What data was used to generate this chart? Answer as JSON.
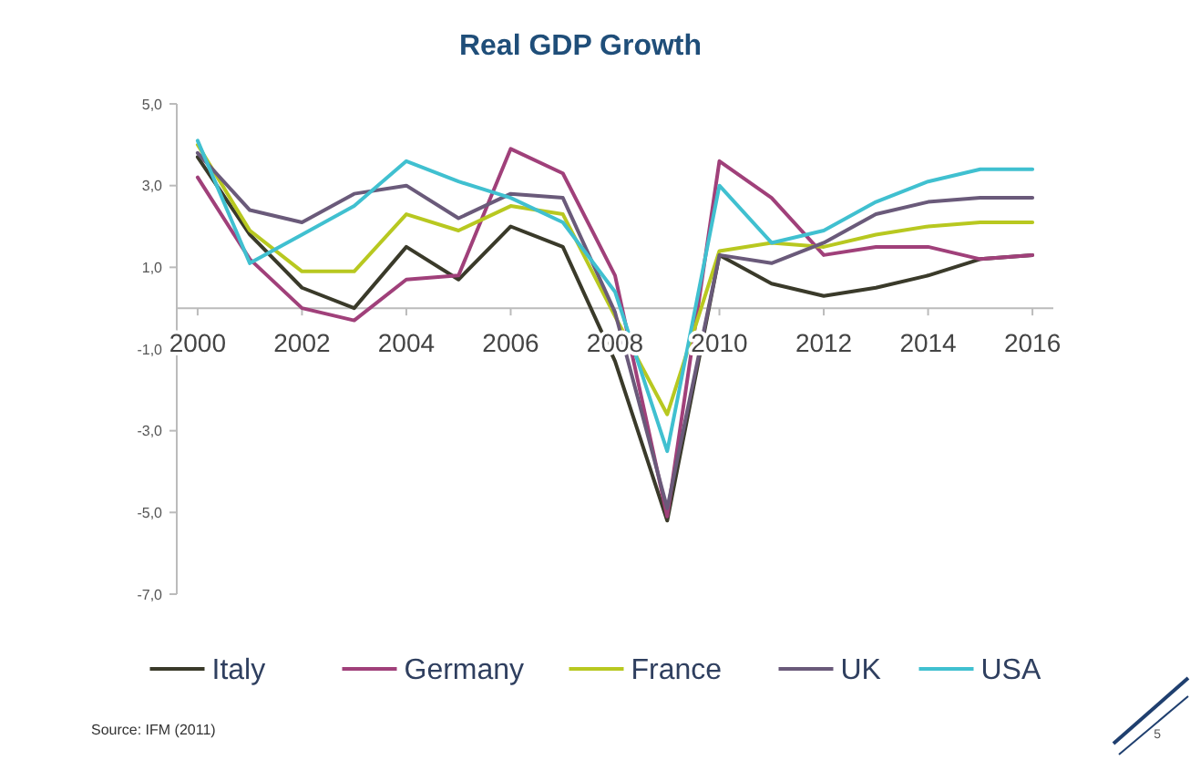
{
  "chart_data": {
    "type": "line",
    "title": "Real GDP Growth",
    "x": [
      2000,
      2001,
      2002,
      2003,
      2004,
      2005,
      2006,
      2007,
      2008,
      2009,
      2010,
      2011,
      2012,
      2013,
      2014,
      2015,
      2016
    ],
    "xlim": [
      1999.6,
      2016.4
    ],
    "xticks": [
      2000,
      2002,
      2004,
      2006,
      2008,
      2010,
      2012,
      2014,
      2016
    ],
    "ylim": [
      -7,
      5
    ],
    "yticks": [
      {
        "value": 5,
        "label": "5,0"
      },
      {
        "value": 3,
        "label": "3,0"
      },
      {
        "value": 1,
        "label": "1,0"
      },
      {
        "value": -1,
        "label": "-1,0"
      },
      {
        "value": -3,
        "label": "-3,0"
      },
      {
        "value": -5,
        "label": "-5,0"
      },
      {
        "value": -7,
        "label": "-7,0"
      }
    ],
    "series": [
      {
        "name": "Italy",
        "color": "#3a3a2a",
        "values": [
          3.7,
          1.8,
          0.5,
          0.0,
          1.5,
          0.7,
          2.0,
          1.5,
          -1.3,
          -5.2,
          1.3,
          0.6,
          0.3,
          0.5,
          0.8,
          1.2,
          1.3
        ]
      },
      {
        "name": "Germany",
        "color": "#a0407a",
        "values": [
          3.2,
          1.2,
          0.0,
          -0.3,
          0.7,
          0.8,
          3.9,
          3.3,
          0.8,
          -5.1,
          3.6,
          2.7,
          1.3,
          1.5,
          1.5,
          1.2,
          1.3
        ]
      },
      {
        "name": "France",
        "color": "#b8c820",
        "values": [
          4.0,
          1.9,
          0.9,
          0.9,
          2.3,
          1.9,
          2.5,
          2.3,
          -0.2,
          -2.6,
          1.4,
          1.6,
          1.5,
          1.8,
          2.0,
          2.1,
          2.1
        ]
      },
      {
        "name": "UK",
        "color": "#6a5a7a",
        "values": [
          3.8,
          2.4,
          2.1,
          2.8,
          3.0,
          2.2,
          2.8,
          2.7,
          -0.1,
          -4.9,
          1.3,
          1.1,
          1.6,
          2.3,
          2.6,
          2.7,
          2.7
        ]
      },
      {
        "name": "USA",
        "color": "#40c0d0",
        "values": [
          4.1,
          1.1,
          1.8,
          2.5,
          3.6,
          3.1,
          2.7,
          2.1,
          0.4,
          -3.5,
          3.0,
          1.6,
          1.9,
          2.6,
          3.1,
          3.4,
          3.4
        ]
      }
    ],
    "grid": false,
    "legend": "bottom",
    "marker": "none",
    "line_style": "solid",
    "annotations": [
      "Source: IFM (2011)",
      "5"
    ]
  }
}
